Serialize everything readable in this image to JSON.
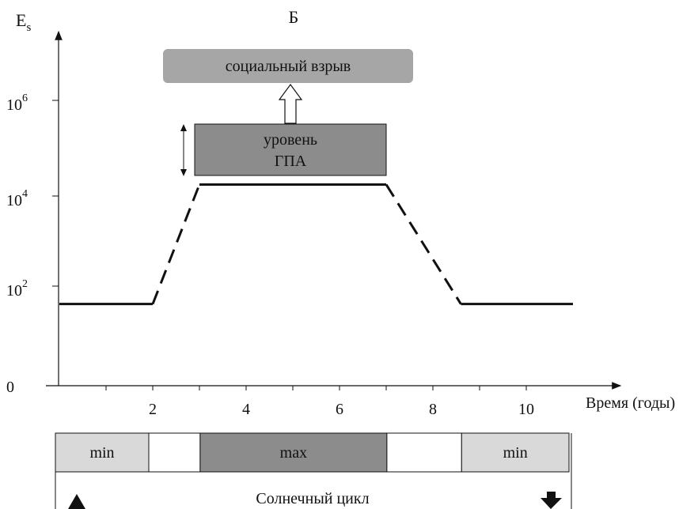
{
  "chart_data": {
    "type": "line",
    "title": "Б",
    "ylabel": "E",
    "ylabel_sub": "s",
    "xlabel": "Время (годы)",
    "y_scale": "log",
    "y_ticks": [
      {
        "base": "0",
        "exp": ""
      },
      {
        "base": "10",
        "exp": "2"
      },
      {
        "base": "10",
        "exp": "4"
      },
      {
        "base": "10",
        "exp": "6"
      }
    ],
    "x_ticks": [
      "2",
      "4",
      "6",
      "8",
      "10"
    ],
    "xlim": [
      0,
      11
    ],
    "series": [
      {
        "segments": [
          {
            "style": "solid",
            "x": [
              0,
              2
            ],
            "y": [
              40,
              40
            ]
          },
          {
            "style": "dashed",
            "x": [
              2,
              3
            ],
            "y": [
              40,
              18000
            ]
          },
          {
            "style": "solid",
            "x": [
              3,
              7
            ],
            "y": [
              18000,
              18000
            ]
          },
          {
            "style": "dashed",
            "x": [
              7,
              8.6
            ],
            "y": [
              18000,
              40
            ]
          },
          {
            "style": "solid",
            "x": [
              8.6,
              11
            ],
            "y": [
              40,
              40
            ]
          }
        ]
      }
    ],
    "annotations": {
      "gpa_box": {
        "lines": [
          "уровень",
          "ГПА"
        ],
        "color": "#8c8c8c"
      },
      "explosion_box": {
        "text": "социальный взрыв",
        "color": "#a6a6a6"
      }
    },
    "solar_cycle": {
      "label": "Солнечный цикл",
      "phases": [
        {
          "label": "min",
          "x": [
            0,
            2
          ],
          "color": "#d9d9d9"
        },
        {
          "label": "",
          "x": [
            2,
            3.1
          ],
          "color": "#ffffff"
        },
        {
          "label": "max",
          "x": [
            3.1,
            7.1
          ],
          "color": "#8c8c8c"
        },
        {
          "label": "",
          "x": [
            7.1,
            8.7
          ],
          "color": "#ffffff"
        },
        {
          "label": "min",
          "x": [
            8.7,
            11
          ],
          "color": "#d9d9d9"
        }
      ]
    }
  }
}
